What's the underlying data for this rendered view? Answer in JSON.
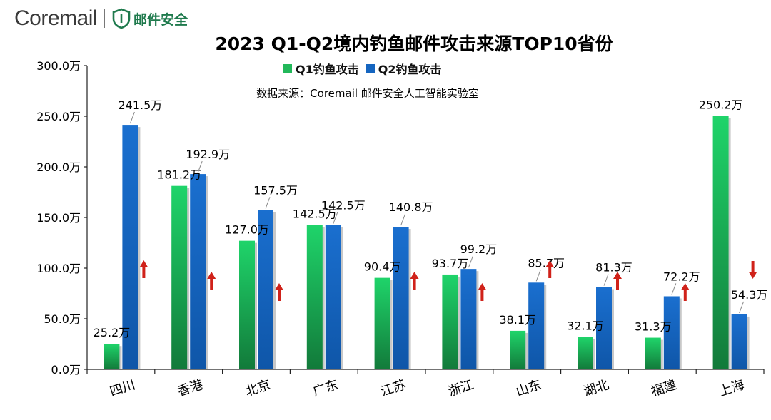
{
  "brand": {
    "wordmark": "Coremail",
    "product": "邮件安全",
    "accent": "#1f7a4d"
  },
  "chart_data": {
    "type": "bar",
    "title": "2023 Q1-Q2境内钓鱼邮件攻击来源TOP10省份",
    "subtitle": "数据来源：Coremail 邮件安全人工智能实验室",
    "unit_suffix": "万",
    "categories": [
      "四川",
      "香港",
      "北京",
      "广东",
      "江苏",
      "浙江",
      "山东",
      "湖北",
      "福建",
      "上海"
    ],
    "series": [
      {
        "name": "Q1钓鱼攻击",
        "color": "#22b85a",
        "values": [
          25.2,
          181.2,
          127.0,
          142.5,
          90.4,
          93.7,
          38.1,
          32.1,
          31.3,
          250.2
        ],
        "labels": [
          "25.2万",
          "181.2万",
          "127.0万",
          "142.5万",
          "90.4万",
          "93.7万",
          "38.1万",
          "32.1万",
          "31.3万",
          "250.2万"
        ]
      },
      {
        "name": "Q2钓鱼攻击",
        "color": "#1565c0",
        "values": [
          241.5,
          192.9,
          157.5,
          142.5,
          140.8,
          99.2,
          85.7,
          81.3,
          72.2,
          54.3
        ],
        "labels": [
          "241.5万",
          "192.9万",
          "157.5万",
          "142.5万",
          "140.8万",
          "99.2万",
          "85.7万",
          "81.3万",
          "72.2万",
          "54.3万"
        ]
      }
    ],
    "trend": [
      "up",
      "up",
      "up",
      "none",
      "up",
      "up",
      "up",
      "up",
      "up",
      "down"
    ],
    "trend_color": "#d0221a",
    "ylim": [
      0,
      300
    ],
    "yticks": [
      0,
      50,
      100,
      150,
      200,
      250,
      300
    ],
    "ytick_labels": [
      "0.0万",
      "50.0万",
      "100.0万",
      "150.0万",
      "200.0万",
      "250.0万",
      "300.0万"
    ],
    "legend_position": "top-center",
    "grid": false
  }
}
